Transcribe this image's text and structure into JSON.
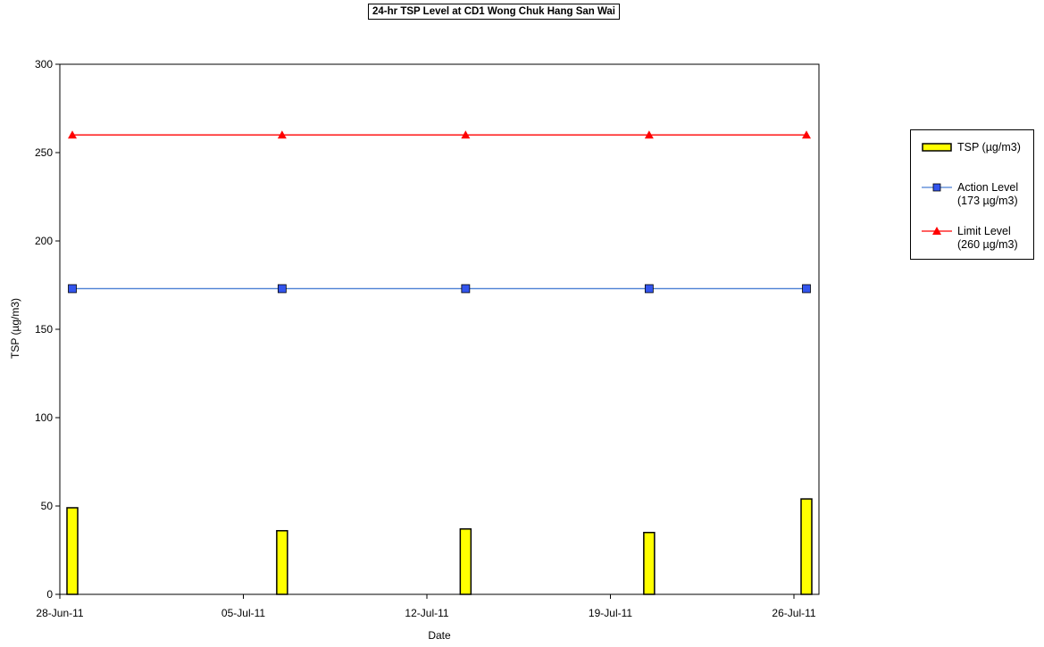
{
  "chart_data": {
    "type": "bar",
    "title": "24-hr TSP Level at CD1 Wong Chuk Hang San Wai",
    "xlabel": "Date",
    "ylabel": "TSP (µg/m3)",
    "ylim": [
      0,
      300
    ],
    "yticks": [
      "0",
      "50",
      "100",
      "150",
      "200",
      "250",
      "300"
    ],
    "xlim": [
      "2011-06-28",
      "2011-07-26"
    ],
    "xticks": [
      {
        "date": "2011-06-28",
        "label": "28-Jun-11"
      },
      {
        "date": "2011-07-05",
        "label": "05-Jul-11"
      },
      {
        "date": "2011-07-12",
        "label": "12-Jul-11"
      },
      {
        "date": "2011-07-19",
        "label": "19-Jul-11"
      },
      {
        "date": "2011-07-26",
        "label": "26-Jul-11"
      }
    ],
    "x": [
      "2011-06-28",
      "2011-07-06",
      "2011-07-13",
      "2011-07-20",
      "2011-07-26"
    ],
    "series": [
      {
        "name": "TSP (µg/m3)",
        "type": "bar",
        "color": "#ffff00",
        "values": [
          49,
          36,
          37,
          35,
          54
        ]
      },
      {
        "name": "Action Level (173 µg/m3)",
        "type": "line",
        "color": "#4a7fd4",
        "marker": "square",
        "marker_color": "#3355ee",
        "values": [
          173,
          173,
          173,
          173,
          173
        ]
      },
      {
        "name": "Limit Level (260 µg/m3)",
        "type": "line",
        "color": "#ff0000",
        "marker": "triangle",
        "values": [
          260,
          260,
          260,
          260,
          260
        ]
      }
    ],
    "grid": false,
    "legend": "right"
  },
  "legend": {
    "tsp": "TSP (µg/m3)",
    "action_line1": "Action Level",
    "action_line2": "(173 µg/m3)",
    "limit_line1": "Limit Level",
    "limit_line2": "(260 µg/m3)"
  }
}
